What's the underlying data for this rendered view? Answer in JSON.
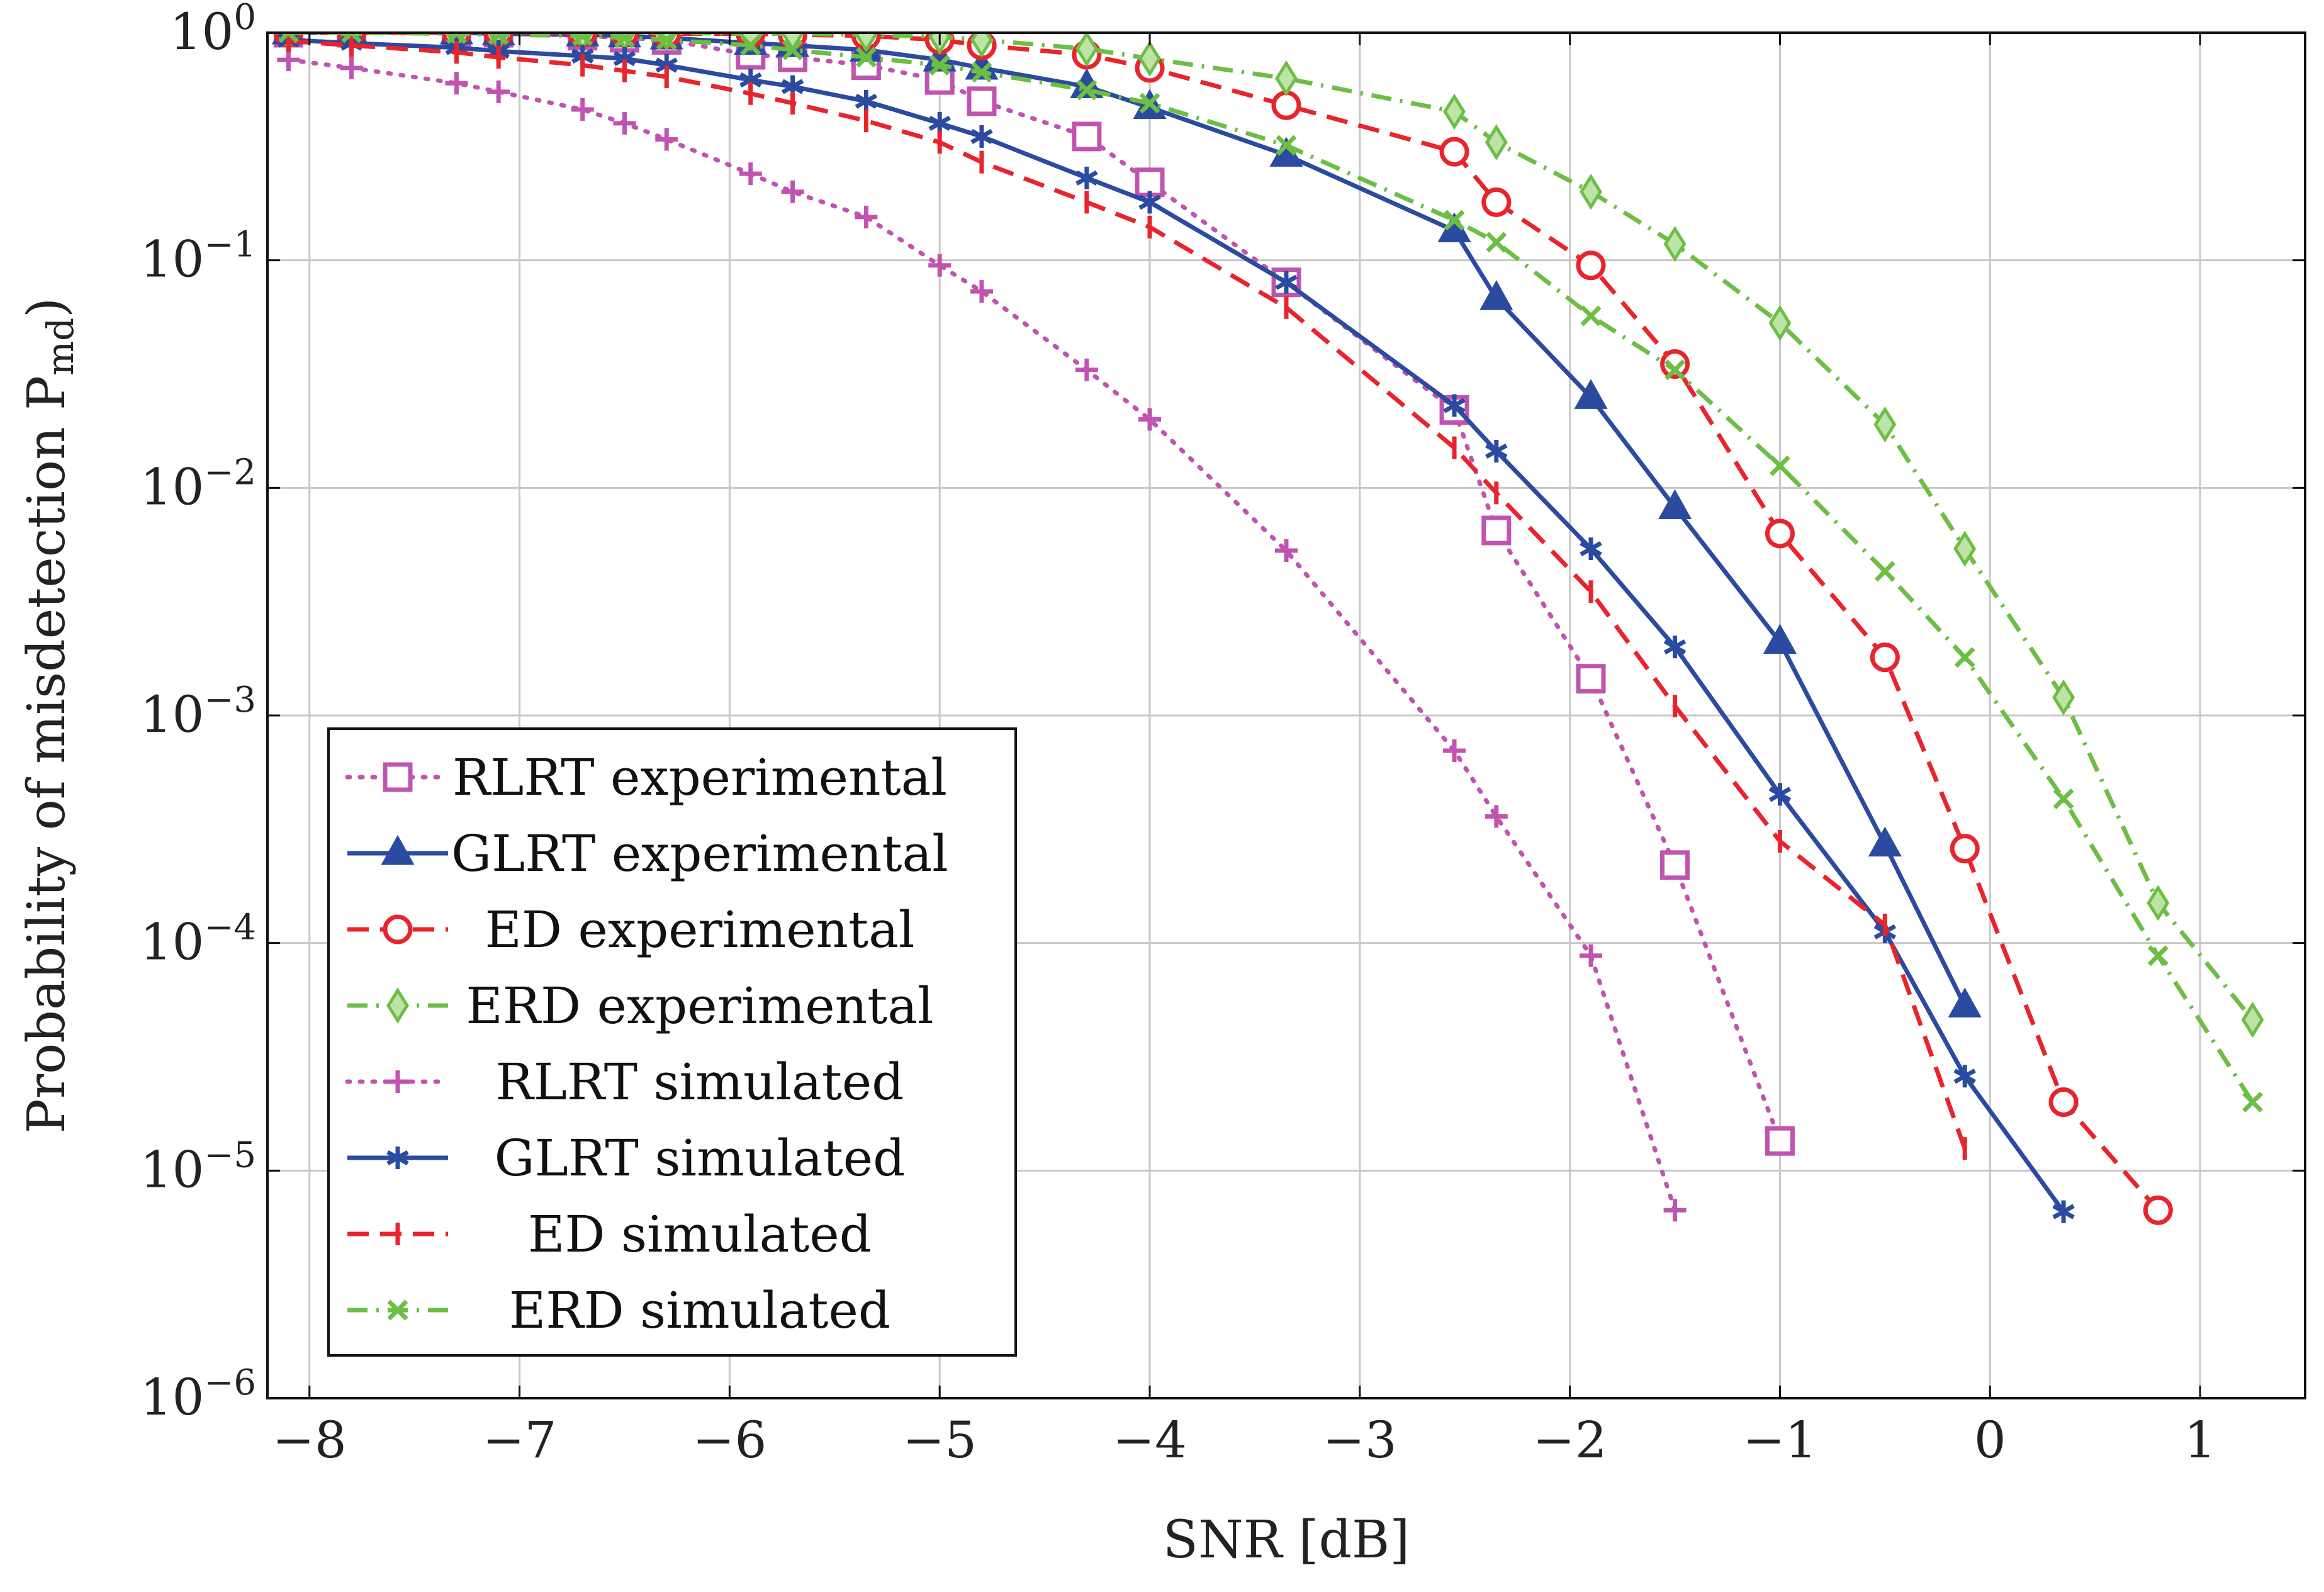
{
  "chart_data": {
    "type": "line",
    "xlabel": "SNR [dB]",
    "ylabel": "Probability of misdetection P",
    "ylabel_sub": "md",
    "xlim": [
      -8.2,
      1.5
    ],
    "ylim": [
      1e-06,
      1
    ],
    "yscale": "log",
    "grid": true,
    "legend_position": "bottom-left",
    "x_ticks": [
      -8,
      -7,
      -6,
      -5,
      -4,
      -3,
      -2,
      -1,
      0,
      1
    ],
    "x_tick_labels": [
      "−8",
      "−7",
      "−6",
      "−5",
      "−4",
      "−3",
      "−2",
      "−1",
      "0",
      "1"
    ],
    "y_ticks": [
      {
        "value": 1,
        "base": "10",
        "exp": "0"
      },
      {
        "value": 0.1,
        "base": "10",
        "exp": "−1"
      },
      {
        "value": 0.01,
        "base": "10",
        "exp": "−2"
      },
      {
        "value": 0.001,
        "base": "10",
        "exp": "−3"
      },
      {
        "value": 0.0001,
        "base": "10",
        "exp": "−4"
      },
      {
        "value": 1e-05,
        "base": "10",
        "exp": "−5"
      },
      {
        "value": 1e-06,
        "base": "10",
        "exp": "−6"
      }
    ],
    "series": [
      {
        "name": "RLRT experimental",
        "color": "#c153b0",
        "dash": "dotted",
        "marker": "square",
        "x": [
          -8.1,
          -7.8,
          -7.3,
          -7.1,
          -6.7,
          -6.5,
          -6.3,
          -5.9,
          -5.7,
          -5.35,
          -5.0,
          -4.8,
          -4.3,
          -4.0,
          -3.35,
          -2.55,
          -2.35,
          -1.9,
          -1.5,
          -1.0
        ],
        "y": [
          1.0,
          1.0,
          1.0,
          1.0,
          0.97,
          0.95,
          0.93,
          0.8,
          0.78,
          0.72,
          0.62,
          0.5,
          0.35,
          0.22,
          0.08,
          0.022,
          0.0065,
          0.00145,
          0.00022,
          1.35e-05
        ]
      },
      {
        "name": "GLRT experimental",
        "color": "#2a4ba0",
        "dash": "solid",
        "marker": "triangle",
        "x": [
          -8.1,
          -7.8,
          -7.3,
          -7.1,
          -6.7,
          -6.5,
          -6.3,
          -5.9,
          -5.7,
          -5.35,
          -5.0,
          -4.8,
          -4.3,
          -4.0,
          -3.35,
          -2.55,
          -2.35,
          -1.9,
          -1.5,
          -1.0,
          -0.5,
          -0.12
        ],
        "y": [
          1.0,
          1.0,
          1.0,
          0.99,
          0.98,
          0.97,
          0.95,
          0.9,
          0.88,
          0.84,
          0.76,
          0.7,
          0.58,
          0.47,
          0.29,
          0.135,
          0.068,
          0.025,
          0.0082,
          0.0021,
          0.00027,
          5.3e-05
        ]
      },
      {
        "name": "ED experimental",
        "color": "#e8242c",
        "dash": "dashed",
        "marker": "circle",
        "x": [
          -8.1,
          -7.8,
          -7.3,
          -7.1,
          -6.7,
          -6.5,
          -6.3,
          -5.9,
          -5.7,
          -5.35,
          -5.0,
          -4.8,
          -4.3,
          -4.0,
          -3.35,
          -2.55,
          -2.35,
          -1.9,
          -1.5,
          -1.0,
          -0.5,
          -0.12,
          0.35,
          0.8
        ],
        "y": [
          1.0,
          1.0,
          1.0,
          1.0,
          1.0,
          1.0,
          0.99,
          0.99,
          0.98,
          0.97,
          0.93,
          0.88,
          0.8,
          0.7,
          0.48,
          0.3,
          0.18,
          0.095,
          0.035,
          0.0063,
          0.0018,
          0.00026,
          2e-05,
          6.7e-06
        ]
      },
      {
        "name": "ERD experimental",
        "color": "#6cbe45",
        "dash": "dashdot",
        "marker": "diamond",
        "x": [
          -8.1,
          -7.8,
          -7.3,
          -7.1,
          -6.7,
          -6.5,
          -6.3,
          -5.9,
          -5.7,
          -5.35,
          -5.0,
          -4.8,
          -4.3,
          -4.0,
          -3.35,
          -2.55,
          -2.35,
          -1.9,
          -1.5,
          -1.0,
          -0.5,
          -0.12,
          0.35,
          0.8,
          1.25
        ],
        "y": [
          1.0,
          1.0,
          1.0,
          1.0,
          1.0,
          1.0,
          1.0,
          0.99,
          0.99,
          0.98,
          0.96,
          0.93,
          0.85,
          0.77,
          0.63,
          0.45,
          0.33,
          0.2,
          0.118,
          0.053,
          0.019,
          0.0054,
          0.0012,
          0.00015,
          4.6e-05
        ]
      },
      {
        "name": "RLRT simulated",
        "color": "#c153b0",
        "dash": "dotted",
        "marker": "plus",
        "x": [
          -8.1,
          -7.8,
          -7.3,
          -7.1,
          -6.7,
          -6.5,
          -6.3,
          -5.9,
          -5.7,
          -5.35,
          -5.0,
          -4.8,
          -4.3,
          -4.0,
          -3.35,
          -2.55,
          -2.35,
          -1.9,
          -1.5
        ],
        "y": [
          0.76,
          0.7,
          0.6,
          0.55,
          0.46,
          0.4,
          0.34,
          0.24,
          0.2,
          0.155,
          0.095,
          0.073,
          0.033,
          0.02,
          0.0053,
          0.0007,
          0.00036,
          8.8e-05,
          6.7e-06
        ]
      },
      {
        "name": "GLRT simulated",
        "color": "#2a4ba0",
        "dash": "solid",
        "marker": "asterisk",
        "x": [
          -8.1,
          -7.8,
          -7.3,
          -7.1,
          -6.7,
          -6.5,
          -6.3,
          -5.9,
          -5.7,
          -5.35,
          -5.0,
          -4.8,
          -4.3,
          -4.0,
          -3.35,
          -2.55,
          -2.35,
          -1.9,
          -1.5,
          -1.0,
          -0.5,
          -0.12,
          0.35
        ],
        "y": [
          0.93,
          0.9,
          0.86,
          0.83,
          0.79,
          0.77,
          0.72,
          0.62,
          0.58,
          0.5,
          0.4,
          0.35,
          0.23,
          0.18,
          0.08,
          0.023,
          0.0145,
          0.0054,
          0.002,
          0.00045,
          0.000112,
          2.6e-05,
          6.6e-06
        ]
      },
      {
        "name": "ED simulated",
        "color": "#e8242c",
        "dash": "dashed",
        "marker": "vbar",
        "x": [
          -8.1,
          -7.8,
          -7.3,
          -7.1,
          -6.7,
          -6.5,
          -6.3,
          -5.9,
          -5.7,
          -5.35,
          -5.0,
          -4.8,
          -4.3,
          -4.0,
          -3.35,
          -2.55,
          -2.35,
          -1.9,
          -1.5,
          -1.0,
          -0.5,
          -0.12
        ],
        "y": [
          0.92,
          0.88,
          0.82,
          0.78,
          0.72,
          0.68,
          0.64,
          0.54,
          0.49,
          0.41,
          0.33,
          0.27,
          0.18,
          0.14,
          0.062,
          0.015,
          0.0095,
          0.0035,
          0.0011,
          0.00028,
          0.00012,
          1.25e-05
        ]
      },
      {
        "name": "ERD simulated",
        "color": "#6cbe45",
        "dash": "dashdot",
        "marker": "cross",
        "x": [
          -8.1,
          -7.8,
          -7.3,
          -7.1,
          -6.7,
          -6.5,
          -6.3,
          -5.9,
          -5.7,
          -5.35,
          -5.0,
          -4.8,
          -4.3,
          -4.0,
          -3.35,
          -2.55,
          -2.35,
          -1.9,
          -1.5,
          -1.0,
          -0.5,
          -0.12,
          0.35,
          0.8,
          1.25
        ],
        "y": [
          1.0,
          1.0,
          0.99,
          0.98,
          0.97,
          0.95,
          0.93,
          0.88,
          0.84,
          0.78,
          0.72,
          0.67,
          0.56,
          0.49,
          0.32,
          0.15,
          0.12,
          0.057,
          0.033,
          0.0125,
          0.0043,
          0.0018,
          0.00043,
          8.8e-05,
          2e-05
        ]
      }
    ]
  }
}
